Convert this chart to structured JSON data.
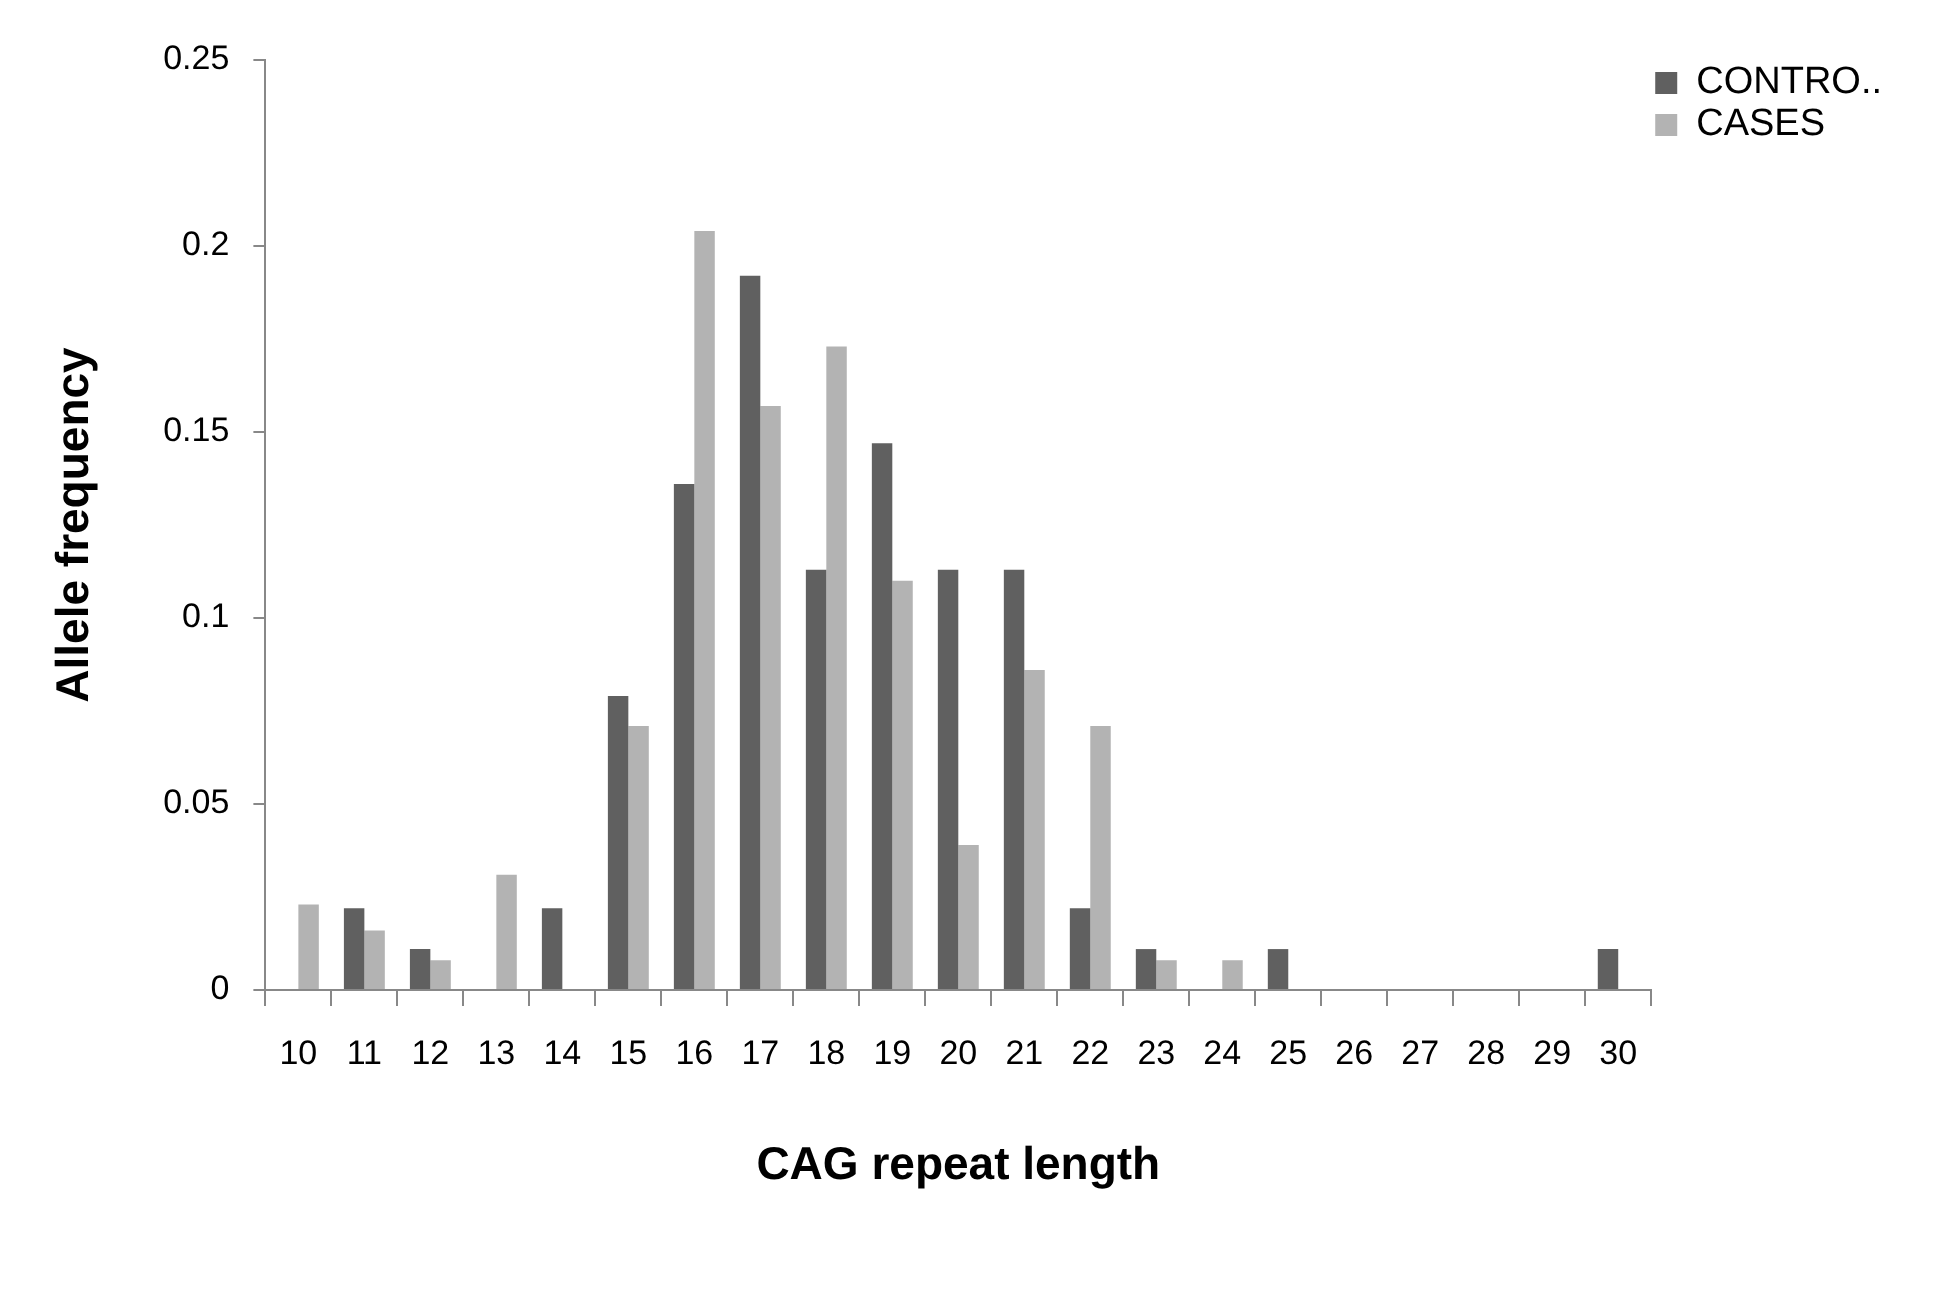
{
  "chart_data": {
    "type": "bar",
    "xlabel": "CAG repeat length",
    "ylabel": "Allele frequency",
    "categories": [
      "10",
      "11",
      "12",
      "13",
      "14",
      "15",
      "16",
      "17",
      "18",
      "19",
      "20",
      "21",
      "22",
      "23",
      "24",
      "25",
      "26",
      "27",
      "28",
      "29",
      "30"
    ],
    "series": [
      {
        "name": "CONTRO..",
        "color": "#606060",
        "values": [
          0,
          0.022,
          0.011,
          0,
          0.022,
          0.079,
          0.136,
          0.192,
          0.113,
          0.147,
          0.113,
          0.113,
          0.022,
          0.011,
          0,
          0.011,
          0,
          0,
          0,
          0,
          0.011
        ]
      },
      {
        "name": "CASES",
        "color": "#b3b3b3",
        "values": [
          0.023,
          0.016,
          0.008,
          0.031,
          0,
          0.071,
          0.204,
          0.157,
          0.173,
          0.11,
          0.039,
          0.086,
          0.071,
          0.008,
          0.008,
          0,
          0,
          0,
          0,
          0,
          0
        ]
      }
    ],
    "ylim": [
      0,
      0.25
    ],
    "yticks": [
      0,
      0.05,
      0.1,
      0.15,
      0.2,
      0.25
    ],
    "grid": false,
    "legend": "top right"
  }
}
